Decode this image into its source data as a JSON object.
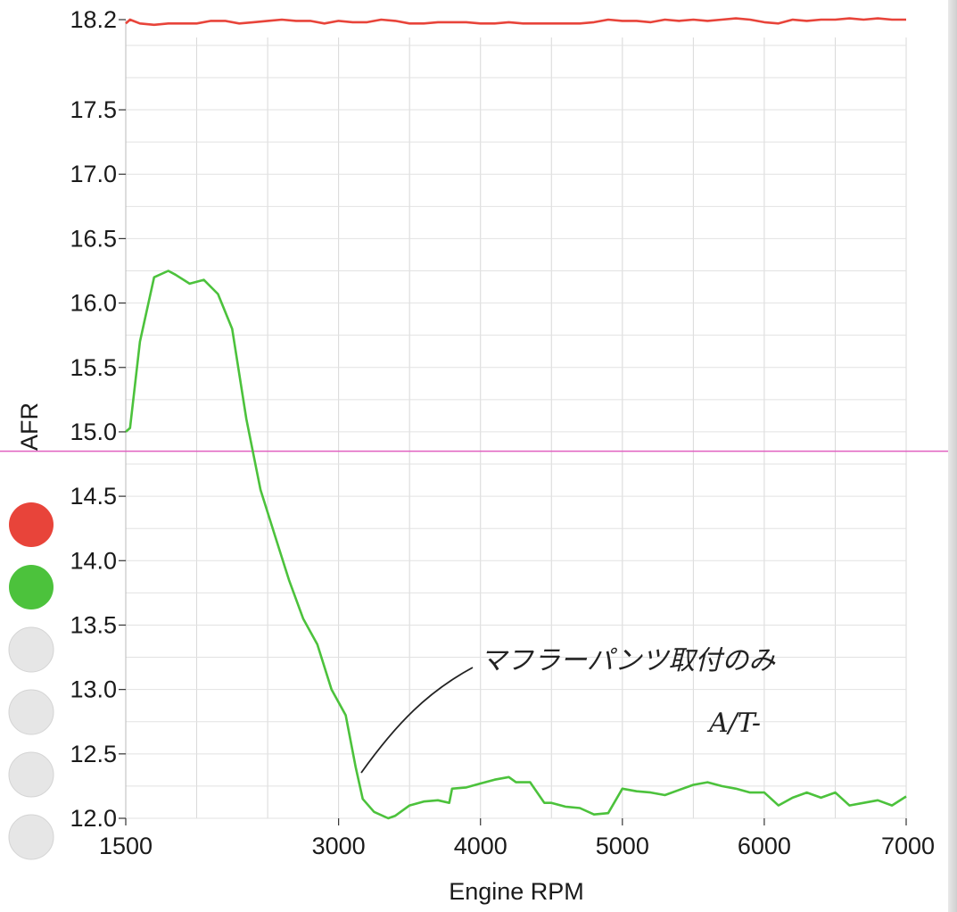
{
  "chart_data": {
    "type": "line",
    "xlabel": "Engine RPM",
    "ylabel": "AFR",
    "xlim": [
      1500,
      7000
    ],
    "ylim": [
      12.0,
      18.2
    ],
    "x_ticks": [
      1500,
      3000,
      4000,
      5000,
      6000,
      7000
    ],
    "y_ticks": [
      12.0,
      12.5,
      13.0,
      13.5,
      14.0,
      14.5,
      15.0,
      15.5,
      16.0,
      16.5,
      17.0,
      17.5,
      18.2
    ],
    "y_tick_labels": [
      "12.0",
      "12.5",
      "13.0",
      "13.5",
      "14.0",
      "14.5",
      "15.0",
      "15.5",
      "16.0",
      "16.5",
      "17.0",
      "17.5",
      "18.2"
    ],
    "x_tick_labels": [
      "1500",
      "3000",
      "4000",
      "5000",
      "6000",
      "7000"
    ],
    "grid": true,
    "reference_line": {
      "y": 14.85,
      "color": "#e060c0"
    },
    "series": [
      {
        "color": "#e8443a",
        "x": [
          1500,
          1530,
          1600,
          1700,
          1800,
          1900,
          2000,
          2100,
          2200,
          2300,
          2400,
          2500,
          2600,
          2700,
          2800,
          2900,
          3000,
          3100,
          3200,
          3300,
          3400,
          3500,
          3600,
          3700,
          3800,
          3900,
          4000,
          4100,
          4200,
          4300,
          4400,
          4500,
          4600,
          4700,
          4800,
          4900,
          5000,
          5100,
          5200,
          5300,
          5400,
          5500,
          5600,
          5700,
          5800,
          5900,
          6000,
          6100,
          6200,
          6300,
          6400,
          6500,
          6600,
          6700,
          6800,
          6900,
          7000
        ],
        "y": [
          18.17,
          18.2,
          18.17,
          18.16,
          18.17,
          18.17,
          18.17,
          18.19,
          18.19,
          18.17,
          18.18,
          18.19,
          18.2,
          18.19,
          18.19,
          18.17,
          18.19,
          18.18,
          18.18,
          18.2,
          18.19,
          18.17,
          18.17,
          18.18,
          18.18,
          18.18,
          18.17,
          18.17,
          18.18,
          18.17,
          18.17,
          18.17,
          18.17,
          18.17,
          18.18,
          18.2,
          18.19,
          18.19,
          18.18,
          18.2,
          18.19,
          18.2,
          18.19,
          18.2,
          18.21,
          18.2,
          18.18,
          18.17,
          18.2,
          18.19,
          18.2,
          18.2,
          18.21,
          18.2,
          18.21,
          18.2,
          18.2
        ]
      },
      {
        "color": "#4cc23c",
        "x": [
          1500,
          1530,
          1600,
          1700,
          1800,
          1850,
          1950,
          2050,
          2150,
          2250,
          2350,
          2450,
          2550,
          2650,
          2750,
          2850,
          2950,
          3050,
          3120,
          3170,
          3250,
          3350,
          3400,
          3500,
          3600,
          3700,
          3780,
          3800,
          3900,
          4000,
          4100,
          4200,
          4250,
          4350,
          4450,
          4500,
          4600,
          4700,
          4800,
          4900,
          5000,
          5100,
          5200,
          5300,
          5400,
          5500,
          5600,
          5700,
          5800,
          5900,
          6000,
          6100,
          6200,
          6300,
          6400,
          6500,
          6600,
          6700,
          6800,
          6900,
          7000
        ],
        "y": [
          15.0,
          15.03,
          15.7,
          16.2,
          16.25,
          16.22,
          16.15,
          16.18,
          16.07,
          15.8,
          15.1,
          14.55,
          14.2,
          13.85,
          13.55,
          13.35,
          13.0,
          12.8,
          12.4,
          12.15,
          12.05,
          12.0,
          12.02,
          12.1,
          12.13,
          12.14,
          12.12,
          12.23,
          12.24,
          12.27,
          12.3,
          12.32,
          12.28,
          12.28,
          12.12,
          12.12,
          12.09,
          12.08,
          12.03,
          12.04,
          12.23,
          12.21,
          12.2,
          12.18,
          12.22,
          12.26,
          12.28,
          12.25,
          12.23,
          12.2,
          12.2,
          12.1,
          12.16,
          12.2,
          12.16,
          12.2,
          12.1,
          12.12,
          12.14,
          12.1,
          12.17
        ]
      }
    ],
    "annotation": {
      "line1": "マフラーパンツ取付のみ",
      "line2": "A/T-"
    }
  },
  "legend_dots": [
    {
      "color": "#e8443a"
    },
    {
      "color": "#4cc23c"
    },
    {
      "color": "#e6e6e6"
    },
    {
      "color": "#e6e6e6"
    },
    {
      "color": "#e6e6e6"
    },
    {
      "color": "#e6e6e6"
    }
  ]
}
